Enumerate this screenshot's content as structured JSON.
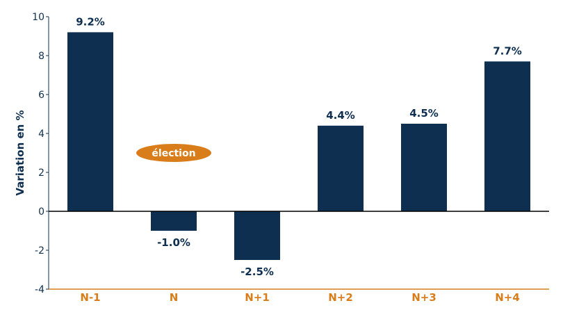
{
  "chart_data": {
    "type": "bar",
    "title": "",
    "xlabel": "",
    "ylabel": "Variation en %",
    "categories": [
      "N-1",
      "N",
      "N+1",
      "N+2",
      "N+3",
      "N+4"
    ],
    "values": [
      9.2,
      -1.0,
      -2.5,
      4.4,
      4.5,
      7.7
    ],
    "data_labels": [
      "9.2%",
      "-1.0%",
      "-2.5%",
      "4.4%",
      "4.5%",
      "7.7%"
    ],
    "ylim": [
      -4,
      10
    ],
    "yticks": [
      -4,
      -2,
      0,
      2,
      4,
      6,
      8,
      10
    ],
    "grid": false,
    "annotation": {
      "text": "élection",
      "category": "N",
      "y": 3
    }
  },
  "colors": {
    "bar": "#0e2f50",
    "accent": "#d97d1a",
    "text": "#0e2f50",
    "zero_line": "#000000"
  }
}
